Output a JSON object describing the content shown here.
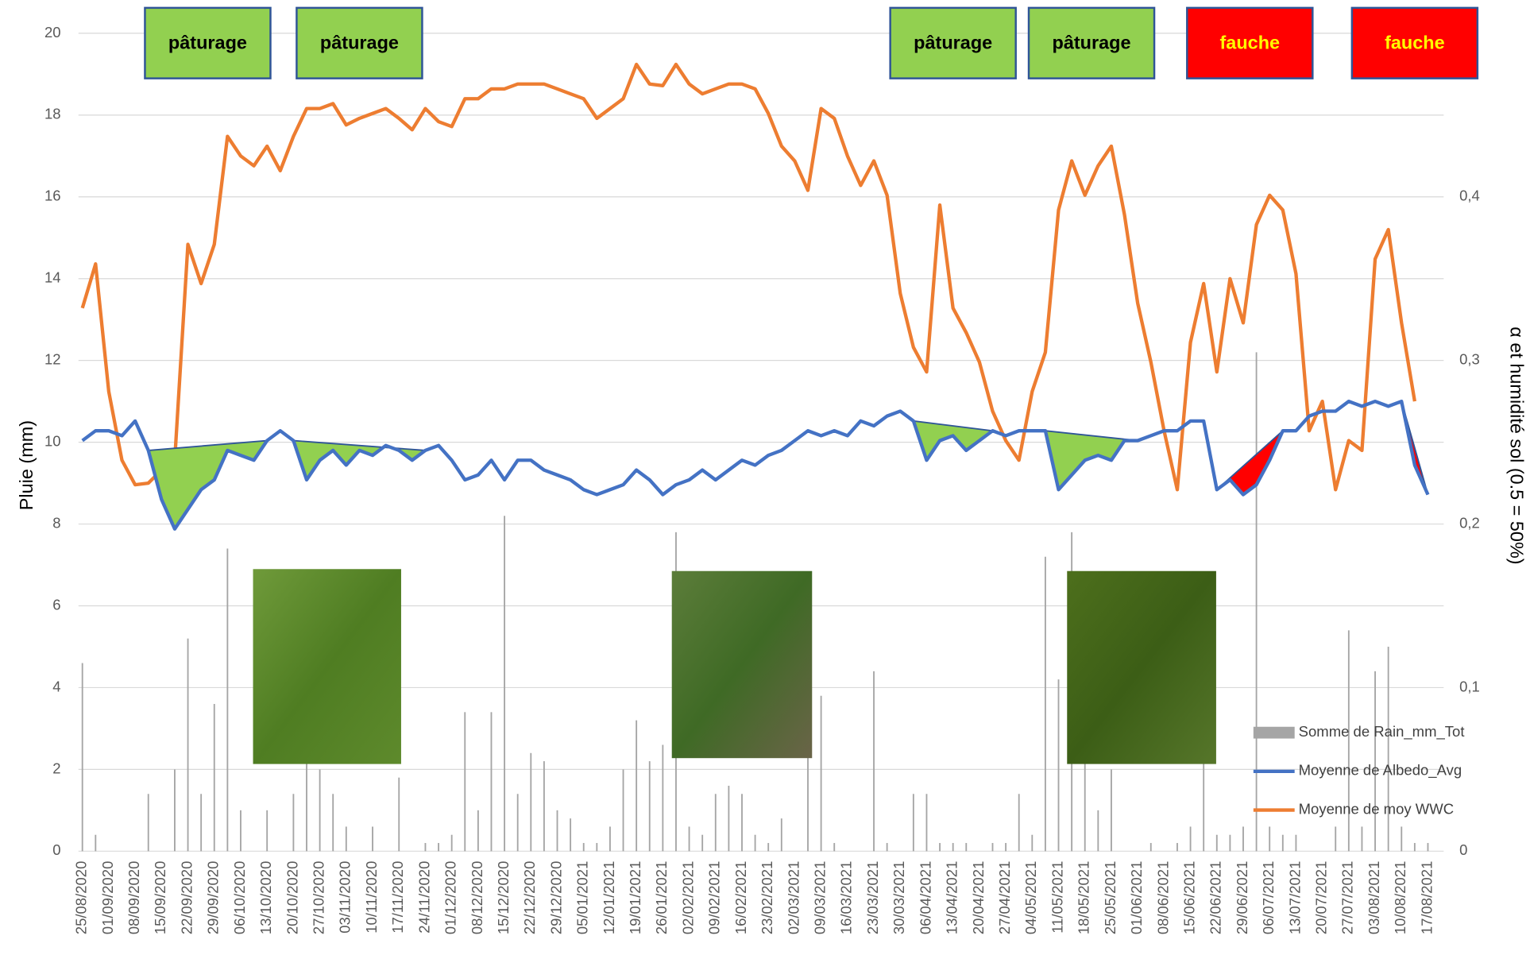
{
  "chart_data": {
    "type": "bar_line",
    "y_label": "Pluie (mm)",
    "y2_label": "α et humidité sol (0.5 = 50%)",
    "ylim": [
      0,
      20
    ],
    "yticks": [
      0,
      2,
      4,
      6,
      8,
      10,
      12,
      14,
      16,
      18,
      20
    ],
    "y2lim": [
      0,
      0.5
    ],
    "y2ticks": [
      0,
      {
        "value": 0.1,
        "label": "0,1"
      },
      {
        "value": 0.2,
        "label": "0,2"
      },
      {
        "value": 0.3,
        "label": "0,3"
      },
      {
        "value": 0.4,
        "label": "0,4"
      }
    ],
    "grid": true,
    "legend": "lower right",
    "categories": [
      "25/08/2020",
      null,
      "01/09/2020",
      null,
      "08/09/2020",
      null,
      "15/09/2020",
      null,
      "22/09/2020",
      null,
      "29/09/2020",
      null,
      "06/10/2020",
      null,
      "13/10/2020",
      null,
      "20/10/2020",
      null,
      "27/10/2020",
      null,
      "03/11/2020",
      null,
      "10/11/2020",
      null,
      "17/11/2020",
      null,
      "24/11/2020",
      null,
      "01/12/2020",
      null,
      "08/12/2020",
      null,
      "15/12/2020",
      null,
      "22/12/2020",
      null,
      "29/12/2020",
      null,
      "05/01/2021",
      null,
      "12/01/2021",
      null,
      "19/01/2021",
      null,
      "26/01/2021",
      null,
      "02/02/2021",
      null,
      "09/02/2021",
      null,
      "16/02/2021",
      null,
      "23/02/2021",
      null,
      "02/03/2021",
      null,
      "09/03/2021",
      null,
      "16/03/2021",
      null,
      "23/03/2021",
      null,
      "30/03/2021",
      null,
      "06/04/2021",
      null,
      "13/04/2021",
      null,
      "20/04/2021",
      null,
      "27/04/2021",
      null,
      "04/05/2021",
      null,
      "11/05/2021",
      null,
      "18/05/2021",
      null,
      "25/05/2021",
      null,
      "01/06/2021",
      null,
      "08/06/2021",
      null,
      "15/06/2021",
      null,
      "22/06/2021",
      null,
      "29/06/2021",
      null,
      "06/07/2021",
      null,
      "13/07/2021",
      null,
      "20/07/2021",
      null,
      "27/07/2021",
      null,
      "03/08/2021",
      null,
      "10/08/2021",
      null,
      "17/08/2021"
    ],
    "series": [
      {
        "name": "Somme de Rain_mm_Tot",
        "type": "bar",
        "axis": "y",
        "color": "#a5a5a5",
        "values": [
          4.6,
          0.4,
          0,
          0,
          0,
          1.4,
          0,
          2.0,
          5.2,
          1.4,
          3.6,
          7.4,
          1.0,
          0,
          1.0,
          0,
          1.4,
          2.5,
          2.0,
          1.4,
          0.6,
          0,
          0.6,
          0,
          1.8,
          0,
          0.2,
          0.2,
          0.4,
          3.4,
          1.0,
          3.4,
          8.2,
          1.4,
          2.4,
          2.2,
          1.0,
          0.8,
          0.2,
          0.2,
          0.6,
          2.0,
          3.2,
          2.2,
          2.6,
          7.8,
          0.6,
          0.4,
          1.4,
          1.6,
          1.4,
          0.4,
          0.2,
          0.8,
          0,
          5.8,
          3.8,
          0.2,
          0,
          0,
          4.4,
          0.2,
          0,
          1.4,
          1.4,
          0.2,
          0.2,
          0.2,
          0,
          0.2,
          0.2,
          1.4,
          0.4,
          7.2,
          4.2,
          7.8,
          6.0,
          1.0,
          2.0,
          0,
          0,
          0.2,
          0,
          0.2,
          0.6,
          2.8,
          0.4,
          0.4,
          0.6,
          12.2,
          0.6,
          0.4,
          0.4,
          0,
          0,
          0.6,
          5.4,
          0.6,
          4.4,
          5.0,
          0.6,
          0.2,
          0.2
        ]
      },
      {
        "name": "Moyenne de Albedo_Avg",
        "type": "line",
        "axis": "y2",
        "color": "#4472c4",
        "values": [
          0.251,
          0.257,
          0.257,
          0.254,
          0.263,
          0.245,
          0.215,
          0.197,
          0.209,
          0.221,
          0.227,
          0.245,
          0.242,
          0.239,
          0.251,
          0.257,
          0.251,
          0.227,
          0.239,
          0.245,
          0.236,
          0.245,
          0.242,
          0.248,
          0.245,
          0.239,
          0.245,
          0.248,
          0.239,
          0.227,
          0.23,
          0.239,
          0.227,
          0.239,
          0.239,
          0.233,
          0.23,
          0.227,
          0.221,
          0.218,
          0.221,
          0.224,
          0.233,
          0.227,
          0.218,
          0.224,
          0.227,
          0.233,
          0.227,
          0.233,
          0.239,
          0.236,
          0.242,
          0.245,
          0.251,
          0.257,
          0.254,
          0.257,
          0.254,
          0.263,
          0.26,
          0.266,
          0.269,
          0.263,
          0.239,
          0.251,
          0.254,
          0.245,
          0.251,
          0.257,
          0.254,
          0.257,
          0.257,
          0.257,
          0.221,
          0.23,
          0.239,
          0.242,
          0.239,
          0.251,
          0.251,
          0.254,
          0.257,
          0.257,
          0.263,
          0.263,
          0.221,
          0.227,
          0.218,
          0.224,
          0.239,
          0.257,
          0.257,
          0.266,
          0.269,
          0.269,
          0.275,
          0.272,
          0.275,
          0.272,
          0.275,
          0.236,
          0.218
        ]
      },
      {
        "name": "Moyenne de moy WWC",
        "type": "line",
        "axis": "y2",
        "color": "#ed7d31",
        "values": [
          0.332,
          0.359,
          0.281,
          0.239,
          0.224,
          0.225,
          0.233,
          0.239,
          0.371,
          0.347,
          0.371,
          0.437,
          0.425,
          0.419,
          0.431,
          0.416,
          0.437,
          0.454,
          0.454,
          0.457,
          0.444,
          0.448,
          0.451,
          0.454,
          0.448,
          0.441,
          0.454,
          0.446,
          0.443,
          0.46,
          0.46,
          0.466,
          0.466,
          0.469,
          0.469,
          0.469,
          0.466,
          0.463,
          0.46,
          0.448,
          0.454,
          0.46,
          0.481,
          0.469,
          0.468,
          0.481,
          0.469,
          0.463,
          0.466,
          0.469,
          0.469,
          0.466,
          0.451,
          0.431,
          0.422,
          0.404,
          0.454,
          0.448,
          0.425,
          0.407,
          0.422,
          0.401,
          0.341,
          0.308,
          0.293,
          0.395,
          0.332,
          0.317,
          0.299,
          0.269,
          0.251,
          0.239,
          0.281,
          0.305,
          0.392,
          0.422,
          0.401,
          0.419,
          0.431,
          0.389,
          0.335,
          0.299,
          0.257,
          0.221,
          0.311,
          0.347,
          0.293,
          0.35,
          0.323,
          0.383,
          0.401,
          0.392,
          0.353,
          0.257,
          0.275,
          0.221,
          0.251,
          0.245,
          0.362,
          0.38,
          0.323,
          0.275,
          null
        ]
      }
    ],
    "periods": [
      {
        "label": "pâturage",
        "color": "#92d050",
        "text_color": "#000000",
        "from": 5,
        "to": 14
      },
      {
        "label": "pâturage",
        "color": "#92d050",
        "text_color": "#000000",
        "from": 16,
        "to": 26
      },
      {
        "label": "pâturage",
        "color": "#92d050",
        "text_color": "#000000",
        "from": 63,
        "to": 69
      },
      {
        "label": "pâturage",
        "color": "#92d050",
        "text_color": "#000000",
        "from": 73,
        "to": 80
      },
      {
        "label": "fauche",
        "color": "#ff0000",
        "text_color": "#ffff00",
        "from": 86,
        "to": 91
      },
      {
        "label": "fauche",
        "color": "#ff0000",
        "text_color": "#ffff00",
        "from": 100,
        "to": 102
      }
    ]
  }
}
